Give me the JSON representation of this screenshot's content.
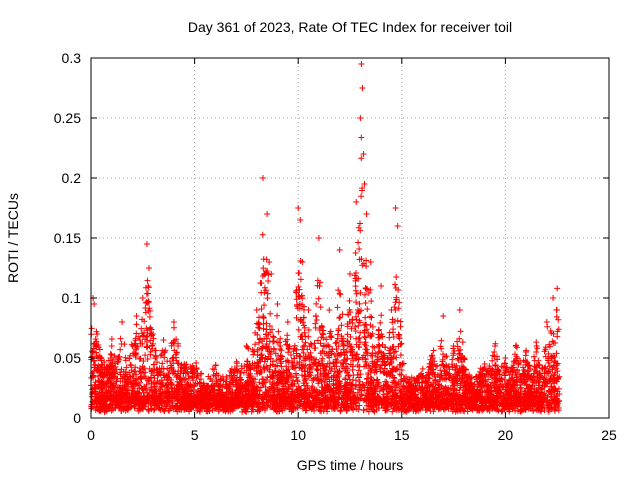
{
  "chart_data": {
    "type": "scatter",
    "title": "Day 361 of 2023, Rate Of TEC Index for receiver toil",
    "xlabel": "GPS time / hours",
    "ylabel": "ROTI / TECUs",
    "xlim": [
      0,
      25
    ],
    "ylim": [
      0,
      0.3
    ],
    "xticks": [
      "0",
      "5",
      "10",
      "15",
      "20",
      "25"
    ],
    "yticks": [
      "0",
      "0.05",
      "0.1",
      "0.15",
      "0.2",
      "0.25",
      "0.3"
    ],
    "grid": true,
    "marker": "plus",
    "color": "#ff0000",
    "time_range_hours": [
      0,
      22.6
    ],
    "sampled_points": {
      "x": [
        0.05,
        0.1,
        0.15,
        0.2,
        0.3,
        0.5,
        0.8,
        1.0,
        1.5,
        2.0,
        2.2,
        2.5,
        2.7,
        2.8,
        3.0,
        3.5,
        4.0,
        4.2,
        4.5,
        5.0,
        6.0,
        7.0,
        7.5,
        8.0,
        8.3,
        8.5,
        8.6,
        8.7,
        9.0,
        9.5,
        10.0,
        10.1,
        10.2,
        10.5,
        11.0,
        11.5,
        12.0,
        12.5,
        12.8,
        13.0,
        13.05,
        13.1,
        13.15,
        13.2,
        13.3,
        13.5,
        14.0,
        14.5,
        14.7,
        14.8,
        15.0,
        16.0,
        16.5,
        17.0,
        17.5,
        17.8,
        18.0,
        19.0,
        19.5,
        20.0,
        20.5,
        21.0,
        21.5,
        22.0,
        22.3,
        22.5,
        22.6
      ],
      "y": [
        0.02,
        0.1,
        0.095,
        0.06,
        0.07,
        0.05,
        0.04,
        0.06,
        0.08,
        0.06,
        0.085,
        0.1,
        0.145,
        0.125,
        0.07,
        0.065,
        0.08,
        0.06,
        0.045,
        0.04,
        0.035,
        0.04,
        0.06,
        0.09,
        0.2,
        0.17,
        0.13,
        0.12,
        0.095,
        0.08,
        0.175,
        0.165,
        0.13,
        0.09,
        0.15,
        0.09,
        0.14,
        0.12,
        0.18,
        0.25,
        0.295,
        0.275,
        0.22,
        0.195,
        0.17,
        0.13,
        0.11,
        0.09,
        0.175,
        0.16,
        0.04,
        0.035,
        0.05,
        0.085,
        0.06,
        0.09,
        0.05,
        0.045,
        0.06,
        0.05,
        0.06,
        0.055,
        0.06,
        0.08,
        0.1,
        0.108,
        0.02
      ]
    }
  }
}
